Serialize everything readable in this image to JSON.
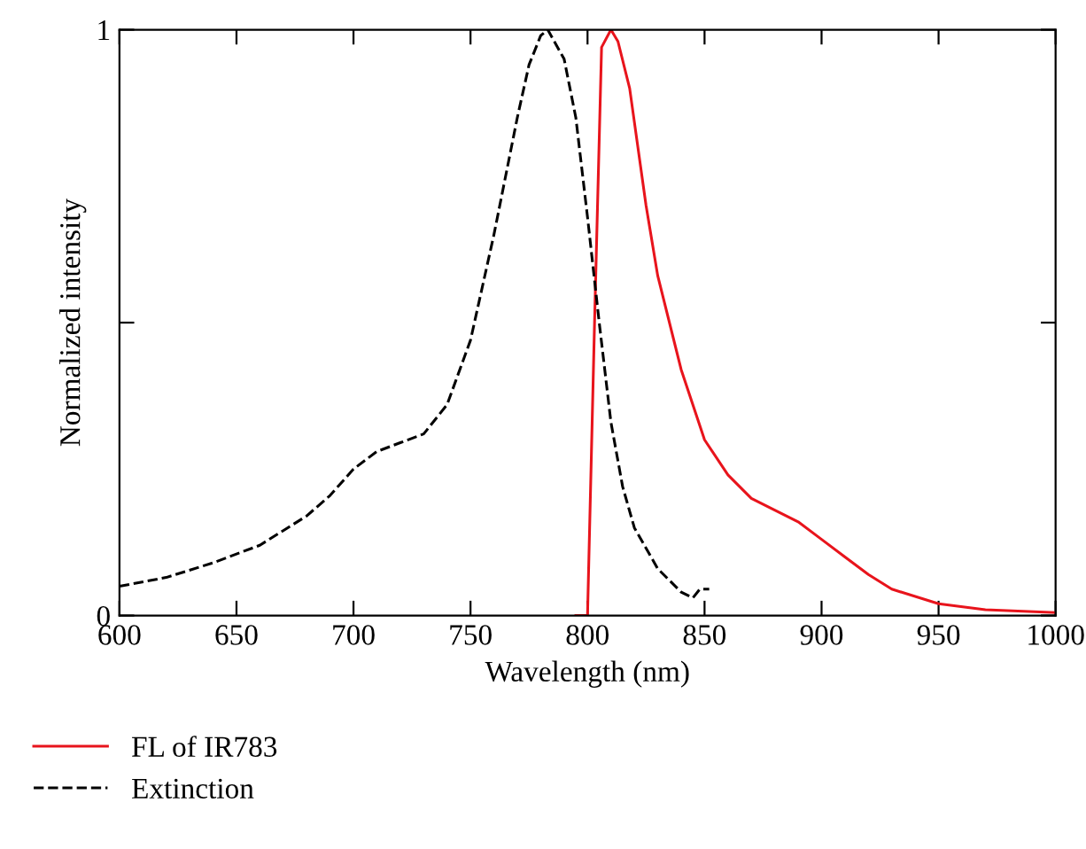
{
  "chart_data": {
    "type": "line",
    "xlabel": "Wavelength (nm)",
    "ylabel": "Normalized intensity",
    "xlim": [
      600,
      1000
    ],
    "ylim": [
      0,
      1
    ],
    "xticks": [
      600,
      650,
      700,
      750,
      800,
      850,
      900,
      950,
      1000
    ],
    "yticks": [
      0,
      {
        "value": 0.5,
        "label": null
      },
      1
    ],
    "grid": false,
    "legend": "bottom",
    "marker": "none",
    "series": [
      {
        "name": "FL of IR783",
        "color": "#e8141c",
        "line_style": "solid",
        "x": [
          795,
          800,
          803,
          806,
          810,
          813,
          818,
          825,
          830,
          840,
          850,
          860,
          870,
          880,
          890,
          900,
          910,
          920,
          930,
          950,
          970,
          1000
        ],
        "values": [
          0,
          0,
          0.5,
          0.97,
          1.0,
          0.98,
          0.9,
          0.7,
          0.58,
          0.42,
          0.3,
          0.24,
          0.2,
          0.18,
          0.16,
          0.13,
          0.1,
          0.07,
          0.045,
          0.02,
          0.01,
          0.005
        ]
      },
      {
        "name": "Extinction",
        "color": "#000000",
        "line_style": "dashed",
        "x": [
          600,
          620,
          640,
          660,
          680,
          690,
          700,
          710,
          720,
          730,
          740,
          750,
          760,
          770,
          775,
          780,
          783,
          790,
          795,
          800,
          805,
          810,
          815,
          820,
          830,
          840,
          845,
          848,
          852
        ],
        "values": [
          0.05,
          0.065,
          0.09,
          0.12,
          0.17,
          0.205,
          0.25,
          0.28,
          0.295,
          0.31,
          0.36,
          0.47,
          0.65,
          0.85,
          0.94,
          0.99,
          1.0,
          0.95,
          0.85,
          0.68,
          0.5,
          0.33,
          0.22,
          0.15,
          0.08,
          0.04,
          0.03,
          0.045,
          0.045
        ]
      }
    ]
  }
}
